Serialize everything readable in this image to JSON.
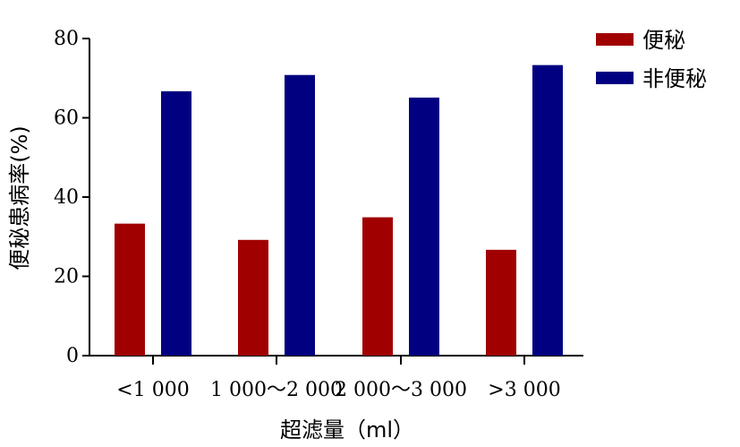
{
  "chart_data": {
    "type": "bar",
    "title": "",
    "xlabel": "超滤量（ml）",
    "ylabel": "便秘患病率(%)",
    "categories": [
      "<1 000",
      "1 000～2 000",
      "2 000～3 000",
      ">3 000"
    ],
    "series": [
      {
        "name": "便秘",
        "values": [
          33.3,
          29.2,
          34.9,
          26.7
        ],
        "color": "#a00000"
      },
      {
        "name": "非便秘",
        "values": [
          66.7,
          70.8,
          65.1,
          73.3
        ],
        "color": "#000080"
      }
    ],
    "ylim": [
      0,
      80
    ],
    "yticks": [
      0,
      20,
      40,
      60,
      80
    ],
    "grid": false,
    "legend_position": "top-right"
  }
}
